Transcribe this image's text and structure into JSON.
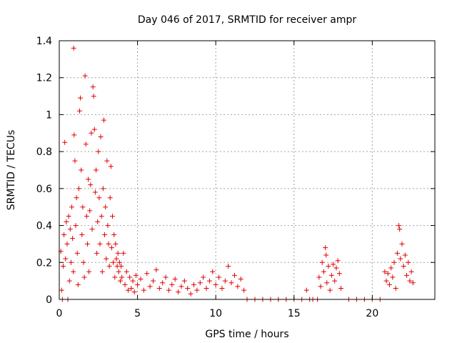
{
  "chart_data": {
    "type": "scatter",
    "title": "Day 046 of 2017, SRMTID for receiver ampr",
    "xlabel": "GPS time / hours",
    "ylabel": "SRMTID / TECUs",
    "xlim": [
      0,
      24
    ],
    "ylim": [
      0,
      1.4
    ],
    "xticks": [
      0,
      5,
      10,
      15,
      20
    ],
    "xtick_labels": [
      "0",
      "5",
      "10",
      "15",
      "20"
    ],
    "yticks": [
      0,
      0.2,
      0.4,
      0.6,
      0.8,
      1,
      1.2,
      1.4
    ],
    "ytick_labels": [
      "0",
      "0.2",
      "0.4",
      "0.6",
      "0.8",
      "1",
      "1.2",
      "1.4"
    ],
    "grid": true,
    "marker": "+",
    "marker_color": "#e00000",
    "series": [
      {
        "name": "SRMTID",
        "points": [
          [
            0.1,
            0.26
          ],
          [
            0.15,
            0.05
          ],
          [
            0.2,
            0.0
          ],
          [
            0.25,
            0.18
          ],
          [
            0.3,
            0.35
          ],
          [
            0.35,
            0.85
          ],
          [
            0.4,
            0.22
          ],
          [
            0.45,
            0.42
          ],
          [
            0.5,
            0.3
          ],
          [
            0.55,
            0.0
          ],
          [
            0.6,
            0.45
          ],
          [
            0.65,
            0.1
          ],
          [
            0.7,
            0.38
          ],
          [
            0.75,
            0.2
          ],
          [
            0.8,
            0.5
          ],
          [
            0.85,
            0.33
          ],
          [
            0.9,
            0.15
          ],
          [
            0.92,
            1.36
          ],
          [
            0.95,
            0.89
          ],
          [
            1.0,
            0.75
          ],
          [
            1.05,
            0.4
          ],
          [
            1.1,
            0.55
          ],
          [
            1.15,
            0.25
          ],
          [
            1.2,
            0.08
          ],
          [
            1.25,
            0.6
          ],
          [
            1.3,
            1.02
          ],
          [
            1.35,
            1.09
          ],
          [
            1.4,
            0.7
          ],
          [
            1.45,
            0.35
          ],
          [
            1.5,
            0.5
          ],
          [
            1.55,
            0.2
          ],
          [
            1.6,
            0.12
          ],
          [
            1.65,
            1.21
          ],
          [
            1.7,
            0.84
          ],
          [
            1.75,
            0.45
          ],
          [
            1.8,
            0.3
          ],
          [
            1.85,
            0.65
          ],
          [
            1.9,
            0.15
          ],
          [
            1.95,
            0.48
          ],
          [
            2.0,
            0.62
          ],
          [
            2.05,
            0.9
          ],
          [
            2.1,
            0.38
          ],
          [
            2.15,
            1.15
          ],
          [
            2.2,
            1.1
          ],
          [
            2.25,
            0.92
          ],
          [
            2.3,
            0.58
          ],
          [
            2.35,
            0.7
          ],
          [
            2.4,
            0.25
          ],
          [
            2.45,
            0.42
          ],
          [
            2.5,
            0.8
          ],
          [
            2.55,
            0.55
          ],
          [
            2.6,
            0.3
          ],
          [
            2.65,
            0.88
          ],
          [
            2.7,
            0.45
          ],
          [
            2.75,
            0.15
          ],
          [
            2.8,
            0.6
          ],
          [
            2.85,
            0.97
          ],
          [
            2.9,
            0.35
          ],
          [
            2.95,
            0.5
          ],
          [
            3.0,
            0.22
          ],
          [
            3.05,
            0.75
          ],
          [
            3.1,
            0.4
          ],
          [
            3.15,
            0.3
          ],
          [
            3.2,
            0.18
          ],
          [
            3.25,
            0.55
          ],
          [
            3.3,
            0.72
          ],
          [
            3.35,
            0.28
          ],
          [
            3.4,
            0.45
          ],
          [
            3.45,
            0.2
          ],
          [
            3.5,
            0.35
          ],
          [
            3.55,
            0.12
          ],
          [
            3.6,
            0.3
          ],
          [
            3.65,
            0.22
          ],
          [
            3.7,
            0.18
          ],
          [
            3.75,
            0.25
          ],
          [
            3.8,
            0.15
          ],
          [
            3.85,
            0.2
          ],
          [
            3.9,
            0.1
          ],
          [
            3.95,
            0.18
          ],
          [
            4.0,
            0.12
          ],
          [
            4.1,
            0.25
          ],
          [
            4.2,
            0.08
          ],
          [
            4.3,
            0.15
          ],
          [
            4.4,
            0.05
          ],
          [
            4.5,
            0.12
          ],
          [
            4.6,
            0.06
          ],
          [
            4.7,
            0.1
          ],
          [
            4.8,
            0.04
          ],
          [
            4.9,
            0.13
          ],
          [
            5.0,
            0.08
          ],
          [
            5.2,
            0.11
          ],
          [
            5.4,
            0.05
          ],
          [
            5.6,
            0.14
          ],
          [
            5.8,
            0.07
          ],
          [
            6.0,
            0.1
          ],
          [
            6.2,
            0.16
          ],
          [
            6.4,
            0.06
          ],
          [
            6.6,
            0.09
          ],
          [
            6.8,
            0.12
          ],
          [
            7.0,
            0.05
          ],
          [
            7.2,
            0.08
          ],
          [
            7.4,
            0.11
          ],
          [
            7.6,
            0.04
          ],
          [
            7.8,
            0.07
          ],
          [
            8.0,
            0.1
          ],
          [
            8.2,
            0.06
          ],
          [
            8.4,
            0.03
          ],
          [
            8.6,
            0.08
          ],
          [
            8.8,
            0.05
          ],
          [
            9.0,
            0.09
          ],
          [
            9.2,
            0.12
          ],
          [
            9.4,
            0.06
          ],
          [
            9.6,
            0.1
          ],
          [
            9.8,
            0.15
          ],
          [
            10.0,
            0.08
          ],
          [
            10.2,
            0.12
          ],
          [
            10.4,
            0.06
          ],
          [
            10.6,
            0.1
          ],
          [
            10.8,
            0.18
          ],
          [
            11.0,
            0.09
          ],
          [
            11.2,
            0.13
          ],
          [
            11.4,
            0.07
          ],
          [
            11.6,
            0.11
          ],
          [
            11.8,
            0.05
          ],
          [
            12.0,
            0.0
          ],
          [
            12.5,
            0.0
          ],
          [
            13.0,
            0.0
          ],
          [
            13.5,
            0.0
          ],
          [
            14.0,
            0.0
          ],
          [
            14.5,
            0.0
          ],
          [
            15.0,
            0.0
          ],
          [
            15.5,
            0.0
          ],
          [
            15.8,
            0.05
          ],
          [
            16.0,
            0.0
          ],
          [
            16.2,
            0.0
          ],
          [
            16.5,
            0.0
          ],
          [
            16.6,
            0.12
          ],
          [
            16.7,
            0.07
          ],
          [
            16.8,
            0.2
          ],
          [
            16.9,
            0.15
          ],
          [
            17.0,
            0.28
          ],
          [
            17.05,
            0.24
          ],
          [
            17.1,
            0.09
          ],
          [
            17.2,
            0.18
          ],
          [
            17.3,
            0.05
          ],
          [
            17.4,
            0.13
          ],
          [
            17.5,
            0.19
          ],
          [
            17.6,
            0.1
          ],
          [
            17.7,
            0.17
          ],
          [
            17.8,
            0.21
          ],
          [
            17.9,
            0.14
          ],
          [
            18.0,
            0.06
          ],
          [
            18.5,
            0.0
          ],
          [
            19.0,
            0.0
          ],
          [
            19.5,
            0.0
          ],
          [
            20.0,
            0.0
          ],
          [
            20.5,
            0.0
          ],
          [
            20.8,
            0.15
          ],
          [
            20.9,
            0.1
          ],
          [
            21.0,
            0.14
          ],
          [
            21.1,
            0.08
          ],
          [
            21.2,
            0.17
          ],
          [
            21.3,
            0.12
          ],
          [
            21.4,
            0.2
          ],
          [
            21.5,
            0.06
          ],
          [
            21.6,
            0.25
          ],
          [
            21.7,
            0.4
          ],
          [
            21.75,
            0.38
          ],
          [
            21.8,
            0.22
          ],
          [
            21.9,
            0.3
          ],
          [
            22.0,
            0.18
          ],
          [
            22.1,
            0.24
          ],
          [
            22.2,
            0.13
          ],
          [
            22.3,
            0.2
          ],
          [
            22.4,
            0.1
          ],
          [
            22.5,
            0.15
          ],
          [
            22.6,
            0.09
          ]
        ]
      }
    ]
  }
}
